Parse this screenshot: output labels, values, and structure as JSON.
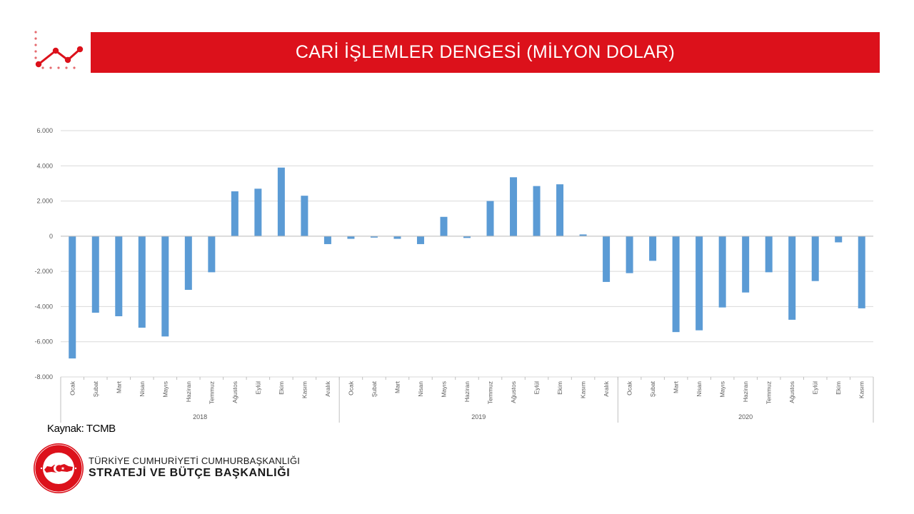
{
  "header": {
    "title": "CARİ İŞLEMLER DENGESİ (MİLYON DOLAR)"
  },
  "chart_data": {
    "type": "bar",
    "categories": [
      "Ocak",
      "Şubat",
      "Mart",
      "Nisan",
      "Mayıs",
      "Haziran",
      "Temmuz",
      "Ağustos",
      "Eylül",
      "Ekim",
      "Kasım",
      "Aralık",
      "Ocak",
      "Şubat",
      "Mart",
      "Nisan",
      "Mayıs",
      "Haziran",
      "Temmuz",
      "Ağustos",
      "Eylül",
      "Ekim",
      "Kasım",
      "Aralık",
      "Ocak",
      "Şubat",
      "Mart",
      "Nisan",
      "Mayıs",
      "Haziran",
      "Temmuz",
      "Ağustos",
      "Eylül",
      "Ekim",
      "Kasım"
    ],
    "groups": [
      {
        "label": "2018",
        "count": 12
      },
      {
        "label": "2019",
        "count": 12
      },
      {
        "label": "2020",
        "count": 11
      }
    ],
    "values": [
      -6950,
      -4350,
      -4550,
      -5200,
      -5700,
      -3050,
      -2050,
      2550,
      2700,
      3900,
      2300,
      -450,
      -150,
      -80,
      -150,
      -450,
      1100,
      -100,
      2000,
      3350,
      2850,
      2950,
      100,
      -2600,
      -2100,
      -1400,
      -5450,
      -5350,
      -4050,
      -3200,
      -2050,
      -4750,
      -2550,
      -350,
      -4100
    ],
    "ylim": [
      -8000,
      6000
    ],
    "yticks": [
      "6.000",
      "4.000",
      "2.000",
      "0",
      "-2.000",
      "-4.000",
      "-6.000",
      "-8.000"
    ],
    "ytick_values": [
      6000,
      4000,
      2000,
      0,
      -2000,
      -4000,
      -6000,
      -8000
    ],
    "grid": true,
    "colors": {
      "bar": "#5b9bd5",
      "grid": "#d9d9d9",
      "axis": "#bfbfbf",
      "text": "#595959"
    },
    "xlabel": "",
    "ylabel": ""
  },
  "footer": {
    "source": "Kaynak: TCMB",
    "org_line1": "TÜRKİYE CUMHURİYETİ CUMHURBAŞKANLIĞI",
    "org_line2": "STRATEJİ VE BÜTÇE BAŞKANLIĞI",
    "seal_top_text": "T.C. CUMHURBAŞKANLIĞI",
    "seal_bottom_text": "STRATEJİ VE BÜTÇE BAŞKANLIĞI"
  },
  "icons": {
    "header": "trend-line-icon",
    "seal": "presidency-seal-icon"
  },
  "theme": {
    "brand_red": "#dc111b"
  }
}
